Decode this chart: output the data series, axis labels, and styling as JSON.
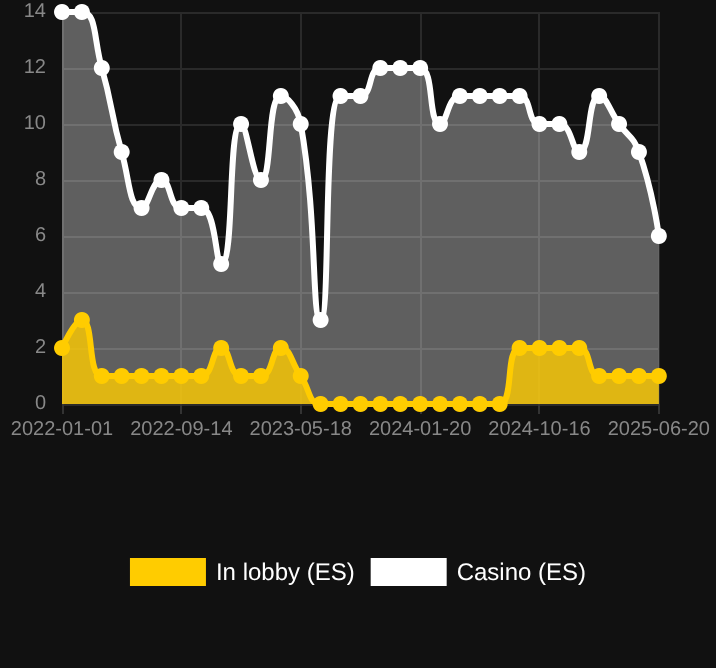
{
  "chart_data": {
    "type": "area",
    "categories": [
      "2022-01-01",
      null,
      null,
      null,
      null,
      null,
      "2022-09-14",
      null,
      null,
      null,
      null,
      null,
      "2023-05-18",
      null,
      null,
      null,
      null,
      null,
      "2024-01-20",
      null,
      null,
      null,
      null,
      null,
      "2024-10-16",
      null,
      null,
      null,
      null,
      null,
      "2025-06-20"
    ],
    "series": [
      {
        "name": "In lobby (ES)",
        "color": "#ffcc00",
        "values": [
          2,
          3,
          1,
          1,
          1,
          1,
          1,
          1,
          2,
          1,
          1,
          2,
          1,
          0,
          0,
          0,
          0,
          0,
          0,
          0,
          0,
          0,
          0,
          2,
          2,
          2,
          2,
          1,
          1,
          1,
          1
        ]
      },
      {
        "name": "Casino (ES)",
        "color": "#ffffff",
        "values": [
          14,
          14,
          12,
          9,
          7,
          8,
          7,
          7,
          5,
          10,
          8,
          11,
          10,
          3,
          11,
          11,
          12,
          12,
          12,
          10,
          11,
          11,
          11,
          11,
          10,
          10,
          9,
          11,
          10,
          9,
          6
        ]
      }
    ],
    "ylim": [
      0,
      14
    ],
    "yticks": [
      0,
      2,
      4,
      6,
      8,
      10,
      12,
      14
    ],
    "grid": true,
    "legend": "bottom",
    "marker": "circle"
  }
}
